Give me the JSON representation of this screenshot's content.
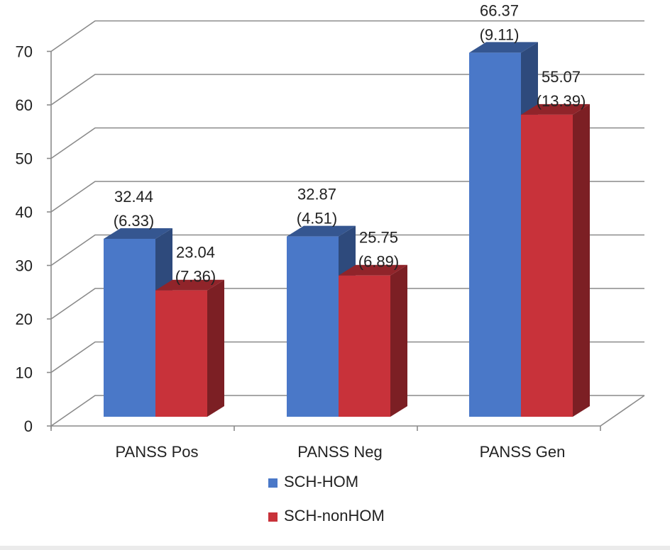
{
  "chart_data": {
    "type": "bar",
    "style": "3d-clustered-column",
    "categories": [
      "PANSS Pos",
      "PANSS Neg",
      "PANSS Gen"
    ],
    "series": [
      {
        "name": "SCH-HOM",
        "color": "#4a78c8",
        "values": [
          32.44,
          32.87,
          66.37
        ],
        "labels": [
          [
            "32.44",
            "(6.33)"
          ],
          [
            "32.87",
            "(4.51)"
          ],
          [
            "66.37",
            "(9.11)"
          ]
        ]
      },
      {
        "name": "SCH-nonHOM",
        "color": "#c8323a",
        "values": [
          23.04,
          25.75,
          55.07
        ],
        "labels": [
          [
            "23.04",
            "(7.36)"
          ],
          [
            "25.75",
            "(6.89)"
          ],
          [
            "55.07",
            "(13.39)"
          ]
        ]
      }
    ],
    "yticks": [
      "0",
      "10",
      "20",
      "30",
      "40",
      "50",
      "60",
      "70"
    ],
    "ylim": [
      0,
      70
    ],
    "grid": true,
    "legend_position": "bottom-center",
    "title": "",
    "xlabel": "",
    "ylabel": ""
  }
}
